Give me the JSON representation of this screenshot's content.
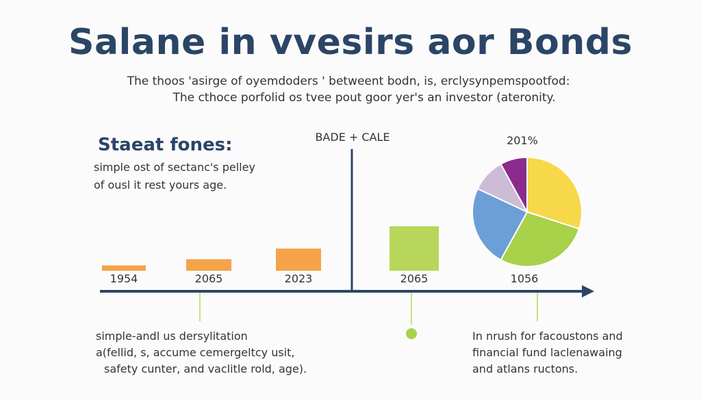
{
  "title": "Salane in vvesirs aor Bonds",
  "subtitle_lines": [
    "The thoos 'asirge of oyemdoders ' betweent bodn, is, erclysynpemspootfod:",
    "The cthoce porfolid os tvee pout goor yer's an investor (ateronity."
  ],
  "left_panel": {
    "heading": "Staeat fones:",
    "lines": [
      "simple ost of sectanc's pelley",
      "of ousl it rest yours age."
    ]
  },
  "chart_data": {
    "type": "bar",
    "header_label": "BADE + CALE",
    "categories": [
      "1954",
      "2065",
      "2023",
      "2065"
    ],
    "values": [
      6,
      13,
      25,
      50
    ],
    "colors": [
      "#f4a34a",
      "#f4a34a",
      "#f4a34a",
      "#b7d65a"
    ],
    "ylim": [
      0,
      60
    ],
    "pie": {
      "label_top": "201%",
      "label_bottom": "1056",
      "slices": [
        {
          "value": 30,
          "color": "#f7d84a"
        },
        {
          "value": 28,
          "color": "#a7d24a"
        },
        {
          "value": 24,
          "color": "#6b9fd6"
        },
        {
          "value": 10,
          "color": "#cdbcd6"
        },
        {
          "value": 8,
          "color": "#8a2b8d"
        }
      ]
    }
  },
  "notes_left": [
    "simple-andl us dersylitation",
    "a(fellid, s, accume cemergeltcy usit,",
    "safety cunter, and vaclitle rold, age)."
  ],
  "notes_right": [
    "In nrush for facoustons and",
    "financial fund laclenawaing",
    "and atlans ructons."
  ]
}
